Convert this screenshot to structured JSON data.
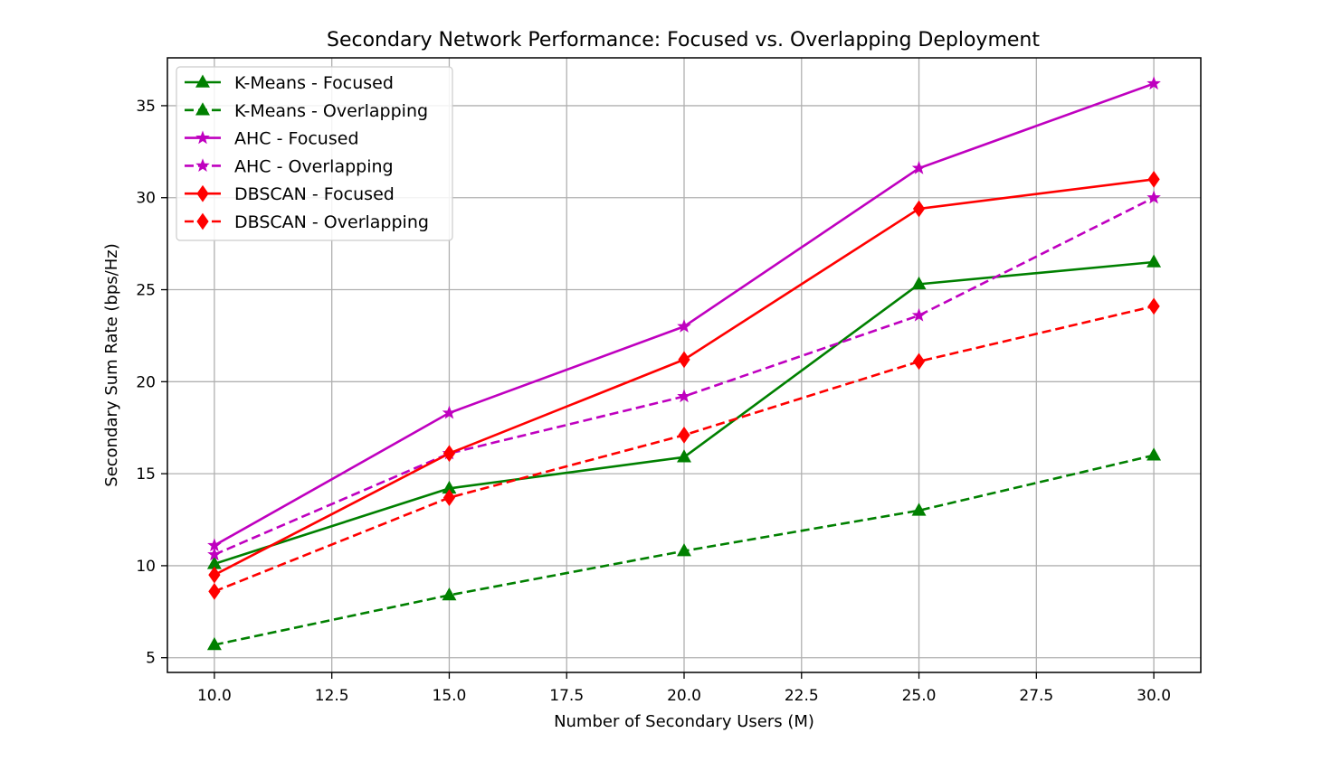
{
  "chart_data": {
    "type": "line",
    "title": "Secondary Network Performance: Focused vs. Overlapping Deployment",
    "xlabel": "Number of Secondary Users (M)",
    "ylabel": "Secondary Sum Rate (bps/Hz)",
    "x": [
      10,
      15,
      20,
      25,
      30
    ],
    "xlim": [
      9.0,
      31.0
    ],
    "ylim": [
      4.2,
      37.6
    ],
    "xticks": [
      "10.0",
      "12.5",
      "15.0",
      "17.5",
      "20.0",
      "22.5",
      "25.0",
      "27.5",
      "30.0"
    ],
    "xtick_values": [
      10,
      12.5,
      15,
      17.5,
      20,
      22.5,
      25,
      27.5,
      30
    ],
    "yticks": [
      "5",
      "10",
      "15",
      "20",
      "25",
      "30",
      "35"
    ],
    "ytick_values": [
      5,
      10,
      15,
      20,
      25,
      30,
      35
    ],
    "grid": true,
    "legend_position": "top-left",
    "series": [
      {
        "name": "K-Means - Focused",
        "values": [
          10.1,
          14.2,
          15.9,
          25.3,
          26.5
        ],
        "color": "#008000",
        "dash": "solid",
        "marker": "triangle"
      },
      {
        "name": "K-Means - Overlapping",
        "values": [
          5.7,
          8.4,
          10.8,
          13.0,
          16.0
        ],
        "color": "#008000",
        "dash": "dashed",
        "marker": "triangle"
      },
      {
        "name": "AHC - Focused",
        "values": [
          11.1,
          18.3,
          23.0,
          31.6,
          36.2
        ],
        "color": "#bf00bf",
        "dash": "solid",
        "marker": "star"
      },
      {
        "name": "AHC - Overlapping",
        "values": [
          10.6,
          16.1,
          19.2,
          23.6,
          30.0
        ],
        "color": "#bf00bf",
        "dash": "dashed",
        "marker": "star"
      },
      {
        "name": "DBSCAN - Focused",
        "values": [
          9.5,
          16.1,
          21.2,
          29.4,
          31.0
        ],
        "color": "#ff0000",
        "dash": "solid",
        "marker": "diamond"
      },
      {
        "name": "DBSCAN - Overlapping",
        "values": [
          8.6,
          13.7,
          17.1,
          21.1,
          24.1
        ],
        "color": "#ff0000",
        "dash": "dashed",
        "marker": "diamond"
      }
    ]
  }
}
